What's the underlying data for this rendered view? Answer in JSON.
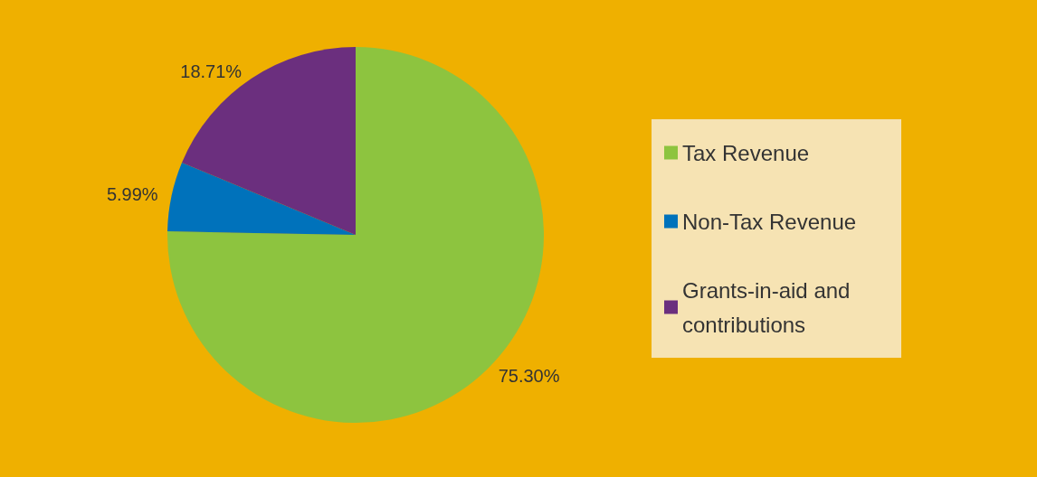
{
  "chart_data": {
    "type": "pie",
    "categories": [
      "Tax Revenue",
      "Non-Tax Revenue",
      "Grants-in-aid and contributions"
    ],
    "values": [
      75.3,
      5.99,
      18.71
    ],
    "colors": [
      "#8dc43f",
      "#0072bb",
      "#6b2f7e"
    ],
    "value_labels": [
      "75.30%",
      "5.99%",
      "18.71%"
    ],
    "legend": "right"
  }
}
